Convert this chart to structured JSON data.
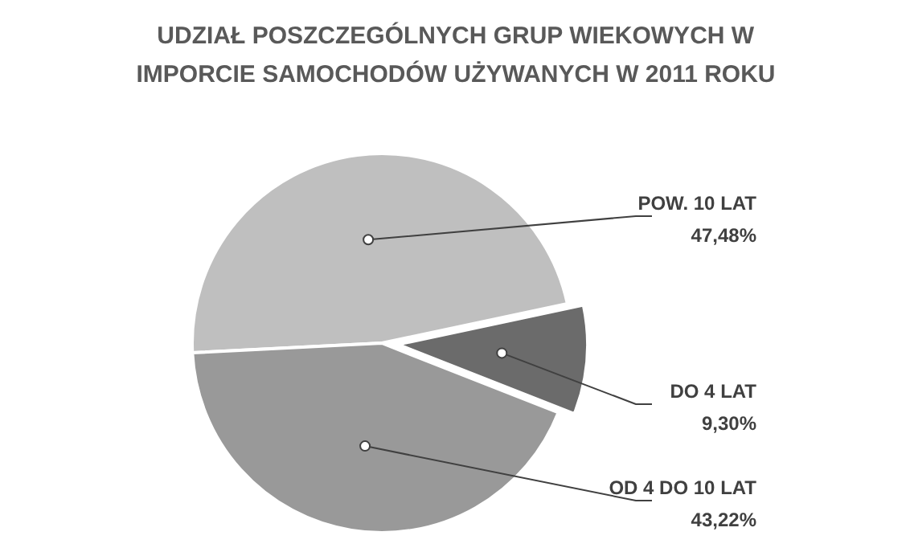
{
  "chart_data": {
    "type": "pie",
    "title": "UDZIAŁ POSZCZEGÓLNYCH GRUP WIEKOWYCH W IMPORCIE SAMOCHODÓW UŻYWANYCH W 2011 ROKU",
    "categories": [
      "POW. 10 LAT",
      "OD 4 DO 10 LAT",
      "DO 4 LAT"
    ],
    "values": [
      47.48,
      43.22,
      9.3
    ],
    "value_labels": [
      "47,48%",
      "43,22%",
      "9,30%"
    ],
    "colors": [
      "#bfbfbf",
      "#999999",
      "#6b6b6b"
    ]
  }
}
